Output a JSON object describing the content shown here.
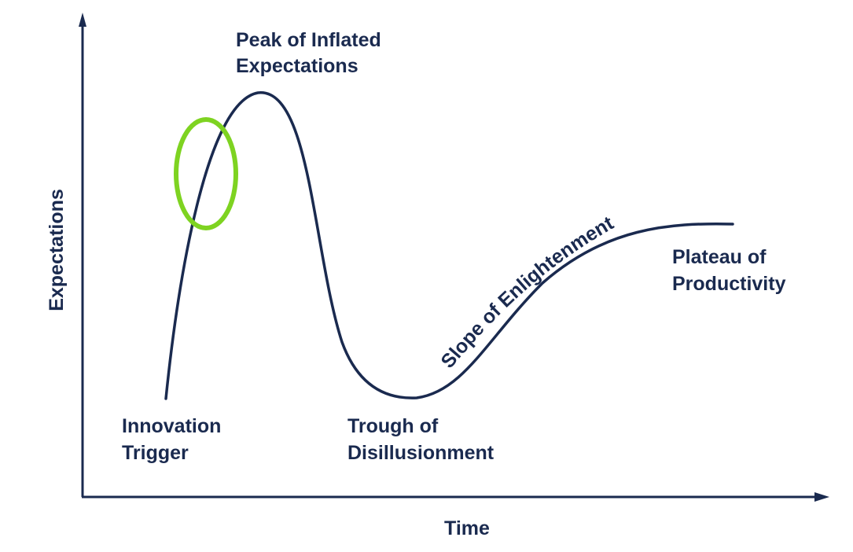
{
  "colors": {
    "ink": "#1a2a4f",
    "highlight": "#7ed321"
  },
  "axes": {
    "y_label": "Expectations",
    "x_label": "Time"
  },
  "phases": {
    "innovation_trigger": [
      "Innovation",
      "Trigger"
    ],
    "peak": [
      "Peak of Inflated",
      "Expectations"
    ],
    "trough": [
      "Trough of",
      "Disillusionment"
    ],
    "slope": "Slope of Enlightenment",
    "plateau": [
      "Plateau of",
      "Productivity"
    ]
  }
}
